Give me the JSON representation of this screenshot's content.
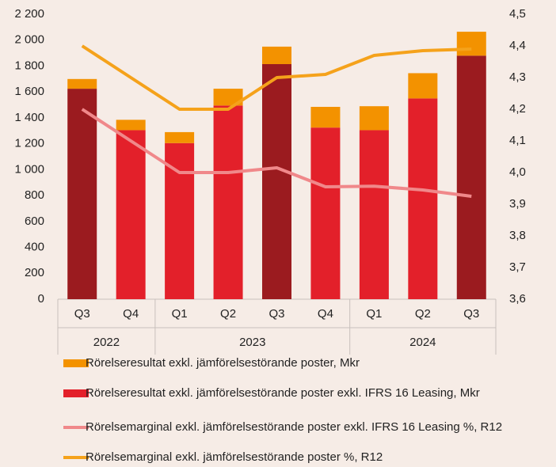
{
  "chart_data": {
    "type": "bar",
    "categories": [
      "Q3",
      "Q4",
      "Q1",
      "Q2",
      "Q3",
      "Q4",
      "Q1",
      "Q2",
      "Q3"
    ],
    "category_groups": [
      "2022",
      "2022",
      "2023",
      "2023",
      "2023",
      "2023",
      "2024",
      "2024",
      "2024"
    ],
    "series": [
      {
        "name": "Rörelseresultat exkl. jämförelsestörande poster, Mkr",
        "type": "bar",
        "color": "#f39200",
        "values": [
          75,
          80,
          85,
          130,
          135,
          160,
          185,
          195,
          185
        ]
      },
      {
        "name": "Rörelseresultat exkl. jämförelsestörande poster exkl. IFRS 16 Leasing, Mkr",
        "type": "bar",
        "color": "#e3202a",
        "colors": [
          "#9b1b1f",
          "#e3202a",
          "#e3202a",
          "#e3202a",
          "#9b1b1f",
          "#e3202a",
          "#e3202a",
          "#e3202a",
          "#9b1b1f"
        ],
        "values": [
          1625,
          1305,
          1205,
          1495,
          1815,
          1325,
          1305,
          1550,
          1880
        ]
      },
      {
        "name": "Rörelsemarginal exkl. jämförelsestörande poster exkl. IFRS 16 Leasing %, R12",
        "type": "line",
        "axis": "y2",
        "color": "#f0888a",
        "values": [
          4.2,
          4.1,
          4.0,
          4.0,
          4.015,
          3.955,
          3.957,
          3.945,
          3.925
        ]
      },
      {
        "name": "Rörelsemarginal exkl. jämförelsestörande poster %, R12",
        "type": "line",
        "axis": "y2",
        "color": "#f5a21b",
        "values": [
          4.4,
          4.3,
          4.2,
          4.2,
          4.3,
          4.31,
          4.37,
          4.385,
          4.39
        ]
      }
    ],
    "ylim": [
      0,
      2200
    ],
    "yticks": [
      0,
      200,
      400,
      600,
      800,
      {
        "value": 1000,
        "label": "1 000"
      },
      {
        "value": 1200,
        "label": "1 200"
      },
      {
        "value": 1400,
        "label": "1 400"
      },
      {
        "value": 1600,
        "label": "1 600"
      },
      {
        "value": 1800,
        "label": "1 800"
      },
      {
        "value": 2000,
        "label": "2 000"
      },
      {
        "value": 2200,
        "label": "2 200"
      }
    ],
    "y2lim": [
      3.6,
      4.5
    ],
    "y2ticks": [
      {
        "value": 3.6,
        "label": "3,6"
      },
      {
        "value": 3.7,
        "label": "3,7"
      },
      {
        "value": 3.8,
        "label": "3,8"
      },
      {
        "value": 3.9,
        "label": "3,9"
      },
      {
        "value": 4.0,
        "label": "4,0"
      },
      {
        "value": 4.1,
        "label": "4,1"
      },
      {
        "value": 4.2,
        "label": "4,2"
      },
      {
        "value": 4.3,
        "label": "4,3"
      },
      {
        "value": 4.4,
        "label": "4,4"
      },
      {
        "value": 4.5,
        "label": "4,5"
      }
    ],
    "grid": false,
    "legend": "bottom"
  }
}
